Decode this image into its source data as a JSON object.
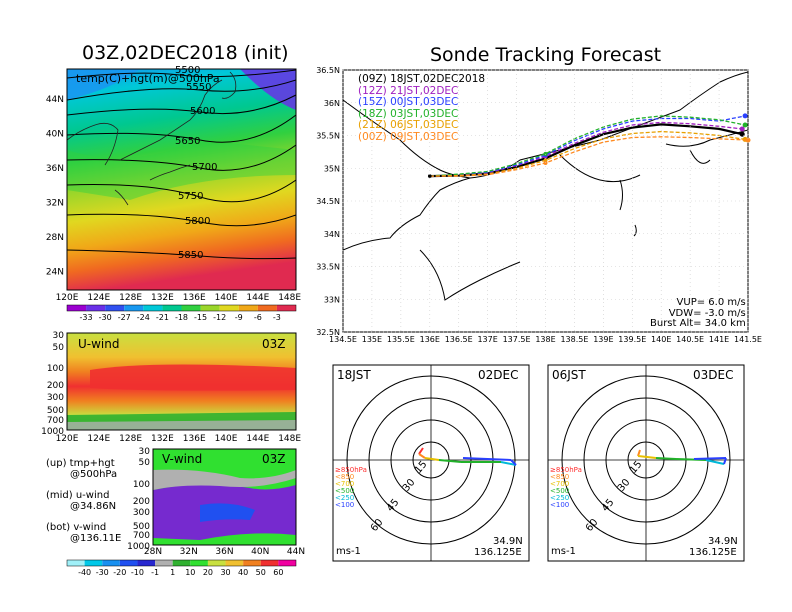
{
  "titles": {
    "left": "03Z,02DEC2018 (init)",
    "right": "Sonde Tracking Forecast"
  },
  "colors": {
    "c09": "#000000",
    "c12": "#a020c0",
    "c15": "#2a40ff",
    "c18": "#22b22a",
    "c21": "#e8a000",
    "c00": "#ff8a20"
  },
  "map500": {
    "label": "temp(C)+hgt(m)@500hPa",
    "contours": [
      "5500",
      "5550",
      "5600",
      "5650",
      "5700",
      "5750",
      "5800",
      "5850"
    ]
  },
  "colorbar_temp": {
    "labels": [
      "-33",
      "-30",
      "-27",
      "-24",
      "-21",
      "-18",
      "-15",
      "-12",
      "-9",
      "-6",
      "-3"
    ],
    "colors": [
      "#9b00d0",
      "#6a30e8",
      "#3050f0",
      "#1898f0",
      "#00c8d8",
      "#00c890",
      "#30d040",
      "#9ad62a",
      "#e0d820",
      "#f0a818",
      "#f06a20",
      "#e02a50"
    ]
  },
  "uwind": {
    "label": "U-wind",
    "time": "03Z"
  },
  "vwind": {
    "label": "V-wind",
    "time": "03Z"
  },
  "legend_notes": [
    {
      "a": "(up) tmp+hgt",
      "b": "@500hPa"
    },
    {
      "a": "(mid) u-wind",
      "b": "@34.86N"
    },
    {
      "a": "(bot) v-wind",
      "b": "@136.11E"
    }
  ],
  "colorbar_wind": {
    "labels": [
      "-40",
      "-30",
      "-20",
      "-10",
      "-1",
      "1",
      "10",
      "20",
      "30",
      "40",
      "50",
      "60"
    ],
    "colors": [
      "#a0f0f8",
      "#00c8e8",
      "#1890f0",
      "#2050f0",
      "#2828d0",
      "#b0b0b0",
      "#30b030",
      "#30e030",
      "#c8e040",
      "#f0c030",
      "#f08020",
      "#f03030",
      "#f000a0"
    ]
  },
  "track_legend": [
    {
      "time": "(09Z)",
      "label": "18JST,02DEC2018",
      "color": "c09"
    },
    {
      "time": "(12Z)",
      "label": "21JST,02DEC",
      "color": "c12"
    },
    {
      "time": "(15Z)",
      "label": "00JST,03DEC",
      "color": "c15"
    },
    {
      "time": "(18Z)",
      "label": "03JST,03DEC",
      "color": "c18"
    },
    {
      "time": "(21Z)",
      "label": "06JST,03DEC",
      "color": "c21"
    },
    {
      "time": "(00Z)",
      "label": "09JST,03DEC",
      "color": "c00"
    }
  ],
  "track_params": [
    "VUP=  6.0 m/s",
    "VDW= -3.0 m/s",
    "Burst Alt= 34.0 km"
  ],
  "chart_data": [
    {
      "type": "line",
      "title": "Sonde Tracking Forecast",
      "xlim": [
        134.5,
        141.5
      ],
      "ylim": [
        32.5,
        36.5
      ],
      "xticks": [
        "134.5E",
        "135E",
        "135.5E",
        "136E",
        "136.5E",
        "137E",
        "137.5E",
        "138E",
        "138.5E",
        "139E",
        "139.5E",
        "140E",
        "140.5E",
        "141E",
        "141.5E"
      ],
      "yticks": [
        "32.5N",
        "33N",
        "33.5N",
        "34N",
        "34.5N",
        "35N",
        "35.5N",
        "36N",
        "36.5N"
      ],
      "start": {
        "lon": 136.0,
        "lat": 34.88
      },
      "series": [
        {
          "name": "(09Z) 18JST,02DEC2018",
          "color": "c09",
          "x": [
            136.0,
            136.5,
            137.0,
            137.5,
            138.0,
            138.5,
            139.0,
            139.5,
            140.0,
            140.5,
            141.0,
            141.4
          ],
          "y": [
            34.88,
            34.89,
            34.92,
            35.02,
            35.15,
            35.35,
            35.52,
            35.62,
            35.67,
            35.64,
            35.6,
            35.52
          ]
        },
        {
          "name": "(12Z) 21JST,02DEC",
          "color": "c12",
          "x": [
            136.0,
            136.5,
            137.0,
            137.5,
            138.0,
            138.5,
            139.0,
            139.5,
            140.0,
            140.5,
            141.0,
            141.4
          ],
          "y": [
            34.88,
            34.9,
            34.93,
            35.04,
            35.18,
            35.38,
            35.55,
            35.66,
            35.7,
            35.68,
            35.64,
            35.6
          ]
        },
        {
          "name": "(15Z) 00JST,03DEC",
          "color": "c15",
          "x": [
            136.0,
            136.5,
            137.0,
            137.5,
            138.0,
            138.5,
            139.0,
            139.5,
            140.0,
            140.5,
            141.0,
            141.45
          ],
          "y": [
            34.88,
            34.9,
            34.94,
            35.05,
            35.2,
            35.42,
            35.6,
            35.72,
            35.76,
            35.76,
            35.72,
            35.8
          ]
        },
        {
          "name": "(18Z) 03JST,03DEC",
          "color": "c18",
          "x": [
            136.0,
            136.5,
            137.0,
            137.5,
            138.0,
            138.5,
            139.0,
            139.5,
            140.0,
            140.5,
            141.0,
            141.45
          ],
          "y": [
            34.88,
            34.91,
            34.95,
            35.07,
            35.22,
            35.45,
            35.63,
            35.75,
            35.8,
            35.78,
            35.74,
            35.66
          ]
        },
        {
          "name": "(21Z) 06JST,03DEC",
          "color": "c21",
          "x": [
            136.0,
            136.5,
            137.0,
            137.5,
            138.0,
            138.5,
            139.0,
            139.5,
            140.0,
            140.5,
            141.0,
            141.45
          ],
          "y": [
            34.88,
            34.89,
            34.91,
            35.0,
            35.12,
            35.3,
            35.45,
            35.53,
            35.56,
            35.54,
            35.5,
            35.44
          ]
        },
        {
          "name": "(00Z) 09JST,03DEC",
          "color": "c00",
          "x": [
            136.0,
            136.5,
            137.0,
            137.5,
            138.0,
            138.5,
            139.0,
            139.5,
            140.0,
            140.5,
            141.0,
            141.5
          ],
          "y": [
            34.88,
            34.88,
            34.9,
            34.98,
            35.08,
            35.25,
            35.4,
            35.47,
            35.48,
            35.47,
            35.45,
            35.43
          ]
        }
      ]
    }
  ],
  "hodographs": [
    {
      "time": "18JST",
      "date": "02DEC",
      "lat": "34.9N",
      "lon": "136.125E",
      "unit": "ms-1",
      "rings": [
        "15",
        "30",
        "45",
        "60"
      ],
      "levels": [
        {
          "t": "≥850hPa",
          "c": "#ff3030"
        },
        {
          "t": "<850",
          "c": "#ff8a20"
        },
        {
          "t": "<700",
          "c": "#e8c000"
        },
        {
          "t": "<500",
          "c": "#22b22a"
        },
        {
          "t": "<250",
          "c": "#00b8d8"
        },
        {
          "t": "<100",
          "c": "#2a40ff"
        }
      ]
    },
    {
      "time": "06JST",
      "date": "03DEC",
      "lat": "34.9N",
      "lon": "136.125E",
      "unit": "ms-1",
      "rings": [
        "15",
        "30",
        "45",
        "60"
      ],
      "levels": [
        {
          "t": "≥850hPa",
          "c": "#ff3030"
        },
        {
          "t": "<850",
          "c": "#ff8a20"
        },
        {
          "t": "<700",
          "c": "#e8c000"
        },
        {
          "t": "<500",
          "c": "#22b22a"
        },
        {
          "t": "<250",
          "c": "#00b8d8"
        },
        {
          "t": "<100",
          "c": "#2a40ff"
        }
      ]
    }
  ],
  "axes": {
    "map500_lon": [
      "120E",
      "124E",
      "128E",
      "132E",
      "136E",
      "140E",
      "144E",
      "148E"
    ],
    "map500_lat": [
      "44N",
      "40N",
      "36N",
      "32N",
      "28N",
      "24N"
    ],
    "p_levels": [
      "30",
      "50",
      "100",
      "200",
      "300",
      "500",
      "700",
      "1000"
    ],
    "vwind_lat": [
      "28N",
      "32N",
      "36N",
      "40N",
      "44N"
    ]
  }
}
